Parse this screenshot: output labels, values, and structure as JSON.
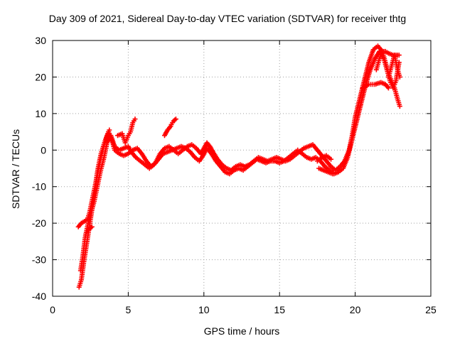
{
  "chart_data": {
    "type": "scatter",
    "title": "Day 309 of 2021, Sidereal Day-to-day VTEC variation (SDTVAR) for receiver thtg",
    "xlabel": "GPS time / hours",
    "ylabel": "SDTVAR / TECUs",
    "xlim": [
      0,
      25
    ],
    "ylim": [
      -40,
      30
    ],
    "xticks": [
      0,
      5,
      10,
      15,
      20,
      25
    ],
    "yticks": [
      -40,
      -30,
      -20,
      -10,
      0,
      10,
      20,
      30
    ],
    "xtick_labels": [
      "0",
      "5",
      "10",
      "15",
      "20",
      "25"
    ],
    "ytick_labels": [
      "-40",
      "-30",
      "-20",
      "-10",
      "0",
      "10",
      "20",
      "30"
    ],
    "grid": true,
    "marker": "plus",
    "series": [
      {
        "name": "SDTVAR",
        "color": "#ff0000",
        "tracks": [
          [
            [
              1.75,
              -37.5
            ],
            [
              1.9,
              -35.5
            ],
            [
              2.05,
              -31
            ],
            [
              2.2,
              -27
            ],
            [
              2.35,
              -23
            ],
            [
              2.5,
              -19
            ],
            [
              2.65,
              -15
            ],
            [
              2.8,
              -11
            ],
            [
              3.0,
              -6
            ],
            [
              3.2,
              -2
            ],
            [
              3.45,
              2
            ],
            [
              3.7,
              5
            ],
            [
              3.9,
              3
            ],
            [
              4.1,
              0
            ],
            [
              4.4,
              -1
            ],
            [
              4.7,
              -1.5
            ],
            [
              5.0,
              -1
            ],
            [
              5.3,
              0
            ],
            [
              5.6,
              0.5
            ],
            [
              5.9,
              -1
            ],
            [
              6.2,
              -3
            ],
            [
              6.5,
              -4.5
            ],
            [
              6.8,
              -3.5
            ],
            [
              7.1,
              -1
            ],
            [
              7.4,
              0.5
            ],
            [
              7.7,
              1
            ],
            [
              8.0,
              0
            ],
            [
              8.3,
              -1
            ],
            [
              8.6,
              0
            ],
            [
              8.9,
              1
            ],
            [
              9.2,
              1.5
            ],
            [
              9.5,
              0.5
            ],
            [
              9.8,
              -1
            ],
            [
              10.0,
              0.5
            ],
            [
              10.2,
              2
            ],
            [
              10.4,
              1
            ],
            [
              10.6,
              -0.5
            ],
            [
              10.9,
              -2.5
            ],
            [
              11.2,
              -4
            ],
            [
              11.5,
              -5
            ],
            [
              11.8,
              -5.5
            ],
            [
              12.1,
              -4.5
            ],
            [
              12.4,
              -4
            ],
            [
              12.7,
              -4.5
            ],
            [
              13.0,
              -4
            ],
            [
              13.3,
              -3
            ],
            [
              13.6,
              -2
            ],
            [
              13.9,
              -2.5
            ],
            [
              14.2,
              -3
            ],
            [
              14.5,
              -2.5
            ],
            [
              14.8,
              -2
            ],
            [
              15.1,
              -2.5
            ],
            [
              15.4,
              -3
            ],
            [
              15.7,
              -2.5
            ],
            [
              16.0,
              -1.5
            ],
            [
              16.3,
              -0.5
            ],
            [
              16.6,
              0.5
            ],
            [
              16.9,
              1
            ],
            [
              17.2,
              1.5
            ],
            [
              17.5,
              0
            ],
            [
              17.8,
              -1.5
            ],
            [
              18.1,
              -3
            ],
            [
              18.4,
              -4.5
            ],
            [
              18.7,
              -5.5
            ],
            [
              19.0,
              -4.5
            ],
            [
              19.3,
              -3
            ],
            [
              19.6,
              0
            ],
            [
              19.8,
              4
            ],
            [
              20.0,
              9
            ],
            [
              20.3,
              14
            ],
            [
              20.6,
              19
            ],
            [
              20.9,
              24
            ],
            [
              21.2,
              27.5
            ],
            [
              21.5,
              28.5
            ],
            [
              21.8,
              27
            ],
            [
              22.0,
              24
            ],
            [
              22.2,
              21
            ],
            [
              22.4,
              19
            ],
            [
              22.6,
              17
            ],
            [
              22.8,
              14
            ],
            [
              22.95,
              12
            ]
          ],
          [
            [
              1.85,
              -33
            ],
            [
              2.0,
              -29
            ],
            [
              2.15,
              -24
            ],
            [
              2.35,
              -20
            ],
            [
              2.55,
              -17
            ],
            [
              2.75,
              -14
            ],
            [
              2.95,
              -10
            ],
            [
              3.15,
              -6
            ],
            [
              3.4,
              -2
            ],
            [
              3.6,
              2
            ],
            [
              3.85,
              4
            ],
            [
              4.1,
              1
            ],
            [
              4.4,
              0
            ],
            [
              4.7,
              0.5
            ],
            [
              5.0,
              1
            ],
            [
              5.2,
              -0.5
            ],
            [
              5.5,
              -2
            ],
            [
              5.8,
              -3
            ],
            [
              6.1,
              -4
            ],
            [
              6.4,
              -5
            ],
            [
              6.7,
              -4
            ],
            [
              7.0,
              -2.5
            ],
            [
              7.3,
              -1
            ],
            [
              7.6,
              -0.5
            ],
            [
              7.9,
              0
            ],
            [
              8.2,
              0.5
            ],
            [
              8.5,
              1
            ],
            [
              8.8,
              0.5
            ],
            [
              9.1,
              -0.5
            ],
            [
              9.4,
              -2
            ],
            [
              9.7,
              -3
            ],
            [
              9.95,
              -1.5
            ],
            [
              10.2,
              0.5
            ],
            [
              10.5,
              -1
            ],
            [
              10.8,
              -3
            ],
            [
              11.1,
              -4.5
            ],
            [
              11.4,
              -6
            ],
            [
              11.7,
              -6.5
            ],
            [
              12.0,
              -5.5
            ],
            [
              12.3,
              -5
            ],
            [
              12.6,
              -5.5
            ],
            [
              12.9,
              -4.5
            ],
            [
              13.2,
              -3.5
            ],
            [
              13.5,
              -2.5
            ],
            [
              13.8,
              -3
            ],
            [
              14.1,
              -3.5
            ],
            [
              14.4,
              -3
            ],
            [
              14.7,
              -3
            ],
            [
              15.0,
              -3.5
            ],
            [
              15.3,
              -3
            ],
            [
              15.6,
              -2
            ],
            [
              15.9,
              -1
            ],
            [
              16.2,
              0
            ],
            [
              16.5,
              -1
            ],
            [
              16.8,
              -2
            ],
            [
              17.1,
              -2.5
            ],
            [
              17.4,
              -2
            ],
            [
              17.7,
              -3
            ],
            [
              18.0,
              -4.5
            ],
            [
              18.3,
              -5.5
            ],
            [
              18.6,
              -6.5
            ],
            [
              18.9,
              -6
            ],
            [
              19.2,
              -5
            ],
            [
              19.5,
              -2
            ],
            [
              19.8,
              3
            ],
            [
              20.1,
              8
            ],
            [
              20.4,
              13
            ],
            [
              20.7,
              18
            ],
            [
              21.0,
              22
            ],
            [
              21.3,
              25
            ],
            [
              21.6,
              27
            ],
            [
              21.9,
              25
            ],
            [
              22.1,
              22
            ],
            [
              22.3,
              19
            ],
            [
              22.5,
              17
            ],
            [
              22.7,
              19
            ],
            [
              22.9,
              24
            ]
          ],
          [
            [
              1.7,
              -21
            ],
            [
              1.9,
              -20
            ],
            [
              2.1,
              -19.5
            ],
            [
              2.3,
              -19
            ],
            [
              2.45,
              -17
            ],
            [
              2.6,
              -14
            ],
            [
              2.75,
              -11
            ],
            [
              2.85,
              -9
            ],
            [
              3.0,
              -5
            ],
            [
              3.2,
              -1
            ],
            [
              3.35,
              1
            ],
            [
              3.55,
              3.5
            ],
            [
              3.75,
              5.5
            ]
          ],
          [
            [
              2.2,
              -23
            ],
            [
              2.3,
              -22
            ],
            [
              2.45,
              -21.5
            ],
            [
              2.6,
              -21
            ]
          ],
          [
            [
              4.3,
              4
            ],
            [
              4.6,
              4.5
            ],
            [
              4.8,
              2
            ],
            [
              5.0,
              4
            ],
            [
              5.15,
              5
            ],
            [
              5.3,
              7.5
            ],
            [
              5.45,
              8.5
            ]
          ],
          [
            [
              7.4,
              4
            ],
            [
              7.6,
              5.5
            ],
            [
              7.8,
              6.5
            ]
          ],
          [
            [
              7.85,
              7
            ],
            [
              8.0,
              8
            ],
            [
              8.15,
              8.5
            ]
          ],
          [
            [
              17.5,
              -3
            ],
            [
              17.8,
              -2
            ],
            [
              18.1,
              -1.5
            ],
            [
              18.4,
              -2.5
            ]
          ],
          [
            [
              17.6,
              -5
            ],
            [
              17.9,
              -5.5
            ],
            [
              18.2,
              -6
            ],
            [
              18.5,
              -6.5
            ]
          ],
          [
            [
              20.5,
              17
            ],
            [
              20.9,
              18
            ],
            [
              21.3,
              18
            ],
            [
              21.7,
              18.5
            ],
            [
              22.0,
              18
            ],
            [
              22.2,
              17
            ]
          ],
          [
            [
              21.4,
              22
            ],
            [
              21.6,
              25
            ],
            [
              21.8,
              27
            ],
            [
              22.0,
              27
            ],
            [
              22.2,
              26.5
            ],
            [
              22.5,
              26
            ],
            [
              22.7,
              26
            ],
            [
              22.9,
              26
            ]
          ],
          [
            [
              22.2,
              20
            ],
            [
              22.4,
              23
            ],
            [
              22.6,
              26
            ],
            [
              22.8,
              22
            ],
            [
              22.95,
              20
            ]
          ]
        ]
      }
    ]
  }
}
